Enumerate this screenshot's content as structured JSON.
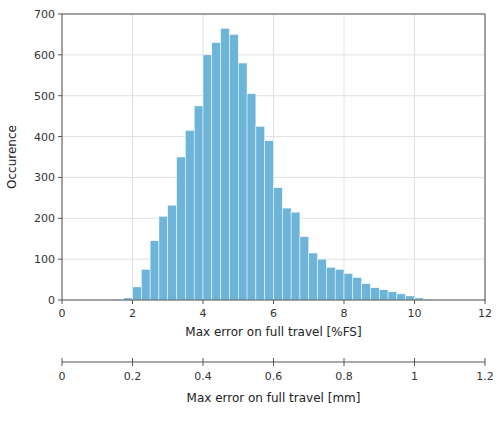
{
  "chart_data": {
    "type": "histogram",
    "bins": [
      1.5,
      1.75,
      2,
      2.25,
      2.5,
      2.75,
      3,
      3.25,
      3.5,
      3.75,
      4,
      4.25,
      4.5,
      4.75,
      5,
      5.25,
      5.5,
      5.75,
      6,
      6.25,
      6.5,
      6.75,
      7,
      7.25,
      7.5,
      7.75,
      8,
      8.25,
      8.5,
      8.75,
      9,
      9.25,
      9.5,
      9.75,
      10,
      10.25,
      10.5,
      10.75,
      11,
      11.25,
      11.5
    ],
    "values": [
      2,
      5,
      32,
      75,
      145,
      205,
      232,
      350,
      415,
      475,
      600,
      630,
      665,
      650,
      580,
      505,
      425,
      390,
      275,
      225,
      215,
      155,
      115,
      100,
      80,
      75,
      65,
      55,
      40,
      30,
      25,
      20,
      15,
      10,
      5,
      2,
      1,
      1,
      0,
      1
    ],
    "color": "#6CB4D8",
    "xlabel": "Max error on full travel [%FS]",
    "ylabel": "Occurence",
    "x2label": "Max error on full travel [mm]",
    "xlim": [
      0,
      12
    ],
    "xticks": [
      0,
      2,
      4,
      6,
      8,
      10,
      12
    ],
    "x2lim": [
      0,
      1.2
    ],
    "x2ticks": [
      0,
      0.2,
      0.4,
      0.6,
      0.8,
      1,
      1.2
    ],
    "ylim": [
      0,
      700
    ],
    "yticks": [
      0,
      100,
      200,
      300,
      400,
      500,
      600,
      700
    ],
    "grid": true
  }
}
